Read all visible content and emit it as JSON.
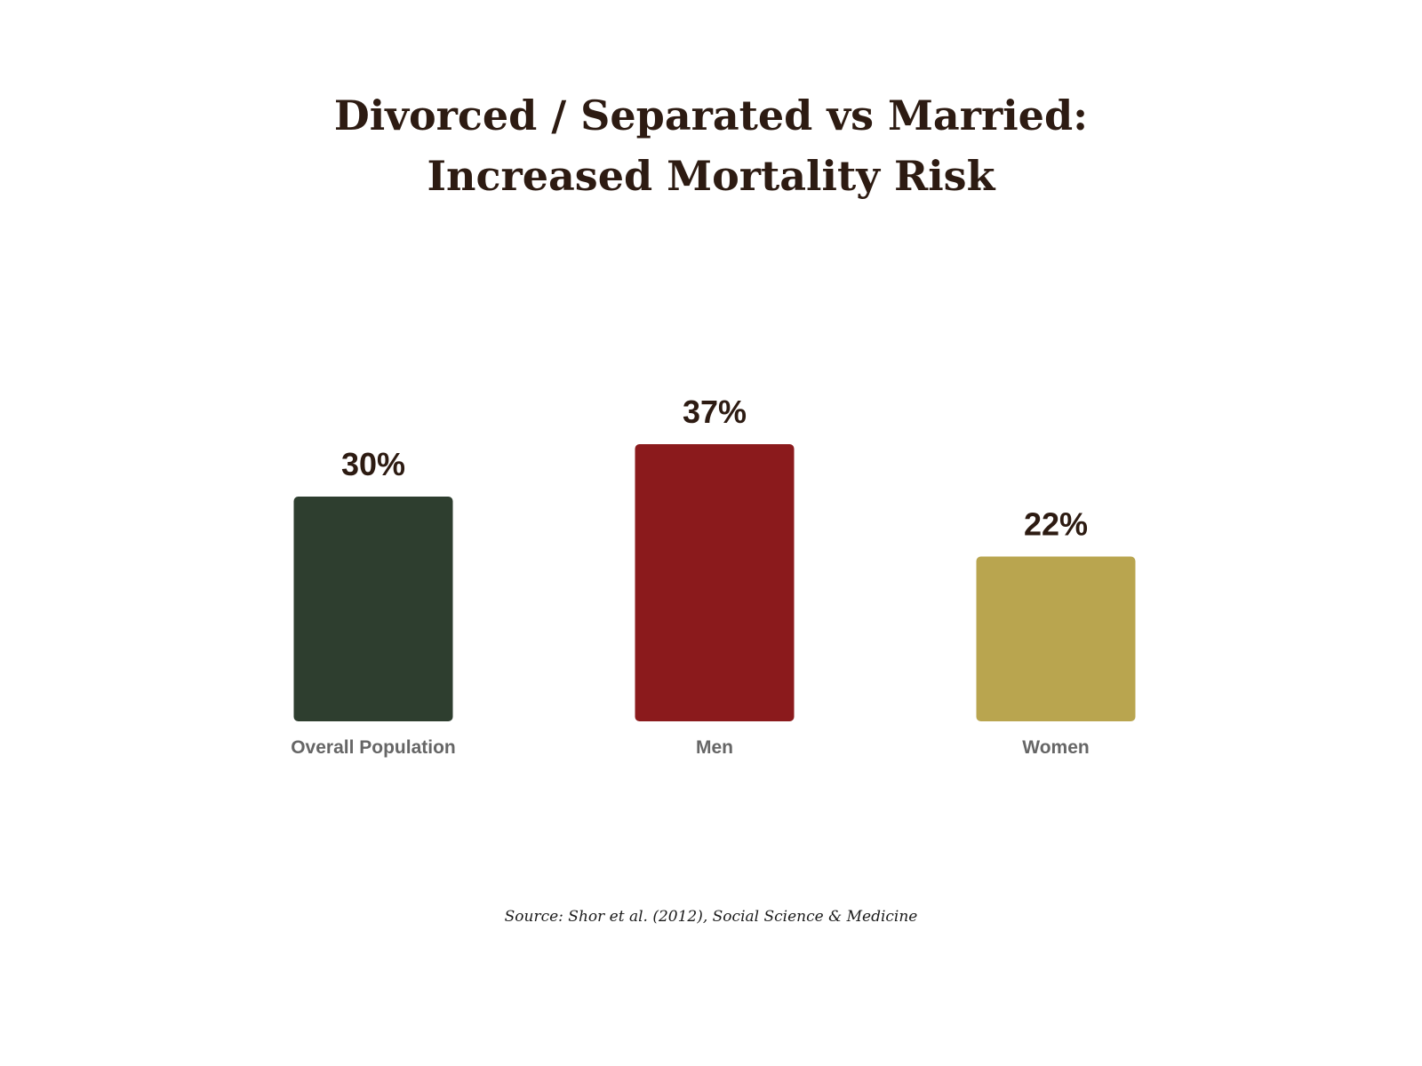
{
  "chart_data": {
    "type": "bar",
    "title_lines": [
      "Divorced / Separated vs Married:",
      "Increased Mortality Risk"
    ],
    "categories": [
      "Overall Population",
      "Men",
      "Women"
    ],
    "values": [
      30,
      37,
      22
    ],
    "value_labels": [
      "30%",
      "37%",
      "22%"
    ],
    "colors": [
      "#2e3e2f",
      "#8b1a1c",
      "#b9a54f"
    ],
    "ylim": [
      0,
      37
    ],
    "grid": false,
    "legend": "none",
    "source": "Source: Shor et al. (2012), Social Science & Medicine",
    "label_color": "#2d1b12",
    "category_label_color": "#666666"
  }
}
